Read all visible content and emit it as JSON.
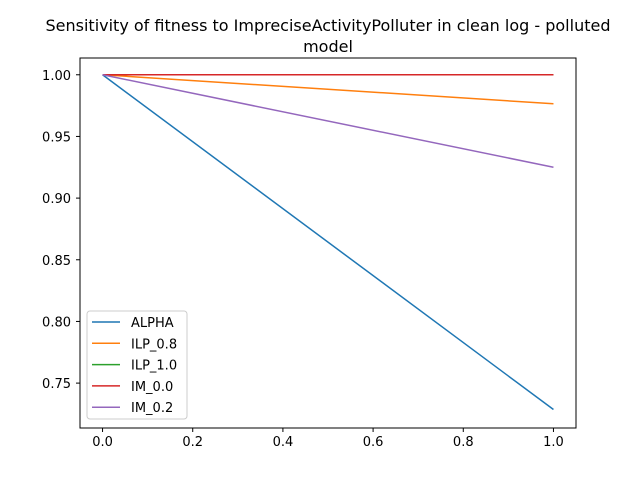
{
  "chart_data": {
    "type": "line",
    "title_lines": [
      "Sensitivity of fitness to ImpreciseActivityPolluter in clean log - polluted",
      "model"
    ],
    "xlabel": "",
    "ylabel": "",
    "xlim": [
      -0.05,
      1.05
    ],
    "ylim": [
      0.7136,
      1.0136
    ],
    "xticks": [
      0.0,
      0.2,
      0.4,
      0.6,
      0.8,
      1.0
    ],
    "xtick_labels": [
      "0.0",
      "0.2",
      "0.4",
      "0.6",
      "0.8",
      "1.0"
    ],
    "yticks": [
      0.75,
      0.8,
      0.85,
      0.9,
      0.95,
      1.0
    ],
    "ytick_labels": [
      "0.75",
      "0.80",
      "0.85",
      "0.90",
      "0.95",
      "1.00"
    ],
    "legend_position": "lower-left",
    "series": [
      {
        "name": "ALPHA",
        "color": "#1f77b4",
        "x": [
          0.0,
          1.0
        ],
        "y": [
          1.0,
          0.7286
        ]
      },
      {
        "name": "ILP_0.8",
        "color": "#ff7f0e",
        "x": [
          0.0,
          1.0
        ],
        "y": [
          1.0,
          0.9765
        ]
      },
      {
        "name": "ILP_1.0",
        "color": "#2ca02c",
        "x": [
          0.0,
          1.0
        ],
        "y": [
          1.0,
          1.0
        ]
      },
      {
        "name": "IM_0.0",
        "color": "#d62728",
        "x": [
          0.0,
          1.0
        ],
        "y": [
          1.0,
          1.0
        ]
      },
      {
        "name": "IM_0.2",
        "color": "#9467bd",
        "x": [
          0.0,
          1.0
        ],
        "y": [
          1.0,
          0.925
        ]
      }
    ]
  }
}
